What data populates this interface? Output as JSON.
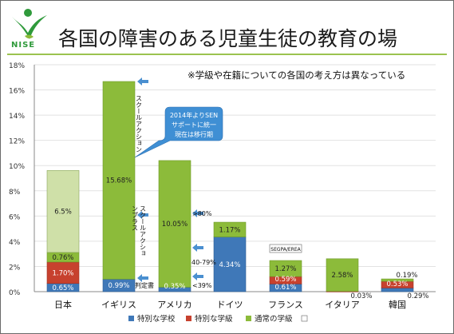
{
  "header": {
    "logo_text": "NISE",
    "title": "各国の障害のある児童生徒の教育の場",
    "note": "※学級や在籍についての各国の考え方は異なっている"
  },
  "colors": {
    "special_school": "#3f78b8",
    "special_class": "#c7412e",
    "regular_class": "#8cbb3a",
    "regular_class_light": "#cfe0a8",
    "axis": "#999999",
    "callout": "#3f8fd4"
  },
  "chart_data": {
    "type": "bar",
    "stacked": true,
    "categories": [
      "日本",
      "イギリス",
      "アメリカ",
      "ドイツ",
      "フランス",
      "イタリア",
      "韓国"
    ],
    "ylim": [
      0,
      18
    ],
    "yticks": [
      "0%",
      "2%",
      "4%",
      "6%",
      "8%",
      "10%",
      "12%",
      "14%",
      "16%",
      "18%"
    ],
    "series": [
      {
        "name": "特別な学校",
        "values": [
          0.65,
          0.99,
          0.35,
          4.34,
          0.61,
          0.0,
          0.29
        ]
      },
      {
        "name": "特別な学級",
        "values": [
          1.7,
          0.0,
          0.0,
          0.0,
          0.59,
          0.03,
          0.53
        ]
      },
      {
        "name": "通常の学級",
        "values": [
          0.76,
          15.68,
          10.05,
          1.17,
          1.27,
          2.58,
          0.19
        ]
      },
      {
        "name": "",
        "values": [
          6.5,
          0,
          0,
          0,
          0,
          0,
          0
        ]
      }
    ],
    "data_labels": [
      {
        "cat": 0,
        "series": 0,
        "text": "0.65%"
      },
      {
        "cat": 0,
        "series": 1,
        "text": "1.70%"
      },
      {
        "cat": 0,
        "series": 2,
        "text": "0.76%"
      },
      {
        "cat": 0,
        "series": 3,
        "text": "6.5%"
      },
      {
        "cat": 1,
        "series": 0,
        "text": "0.99%"
      },
      {
        "cat": 1,
        "series": 2,
        "text": "15.68%"
      },
      {
        "cat": 2,
        "series": 0,
        "text": "0.35%"
      },
      {
        "cat": 2,
        "series": 2,
        "text": "10.05%"
      },
      {
        "cat": 3,
        "series": 0,
        "text": "4.34%"
      },
      {
        "cat": 3,
        "series": 2,
        "text": "1.17%"
      },
      {
        "cat": 4,
        "series": 0,
        "text": "0.61%"
      },
      {
        "cat": 4,
        "series": 1,
        "text": "0.59%"
      },
      {
        "cat": 4,
        "series": 2,
        "text": "1.27%"
      },
      {
        "cat": 5,
        "series": 1,
        "text": "0.03%"
      },
      {
        "cat": 5,
        "series": 2,
        "text": "2.58%"
      },
      {
        "cat": 6,
        "series": 0,
        "text": "0.29%"
      },
      {
        "cat": 6,
        "series": 1,
        "text": "0.53%"
      },
      {
        "cat": 6,
        "series": 2,
        "text": "0.19%"
      }
    ],
    "legend": [
      "特別な学校",
      "特別な学級",
      "通常の学級",
      ""
    ],
    "legend_position": "bottom",
    "annotations": {
      "callout": [
        "2014年よりSEN",
        "サポートに統一",
        "現在は移行期"
      ],
      "uk_school_action": "スクールアクション",
      "uk_school_action_plus": "スクールアクションプラス",
      "uk_statement": "判定書",
      "us_ranges": [
        ">80%",
        "40-79%",
        "<39%"
      ],
      "france_tag": "SEGPA/EREA"
    }
  }
}
